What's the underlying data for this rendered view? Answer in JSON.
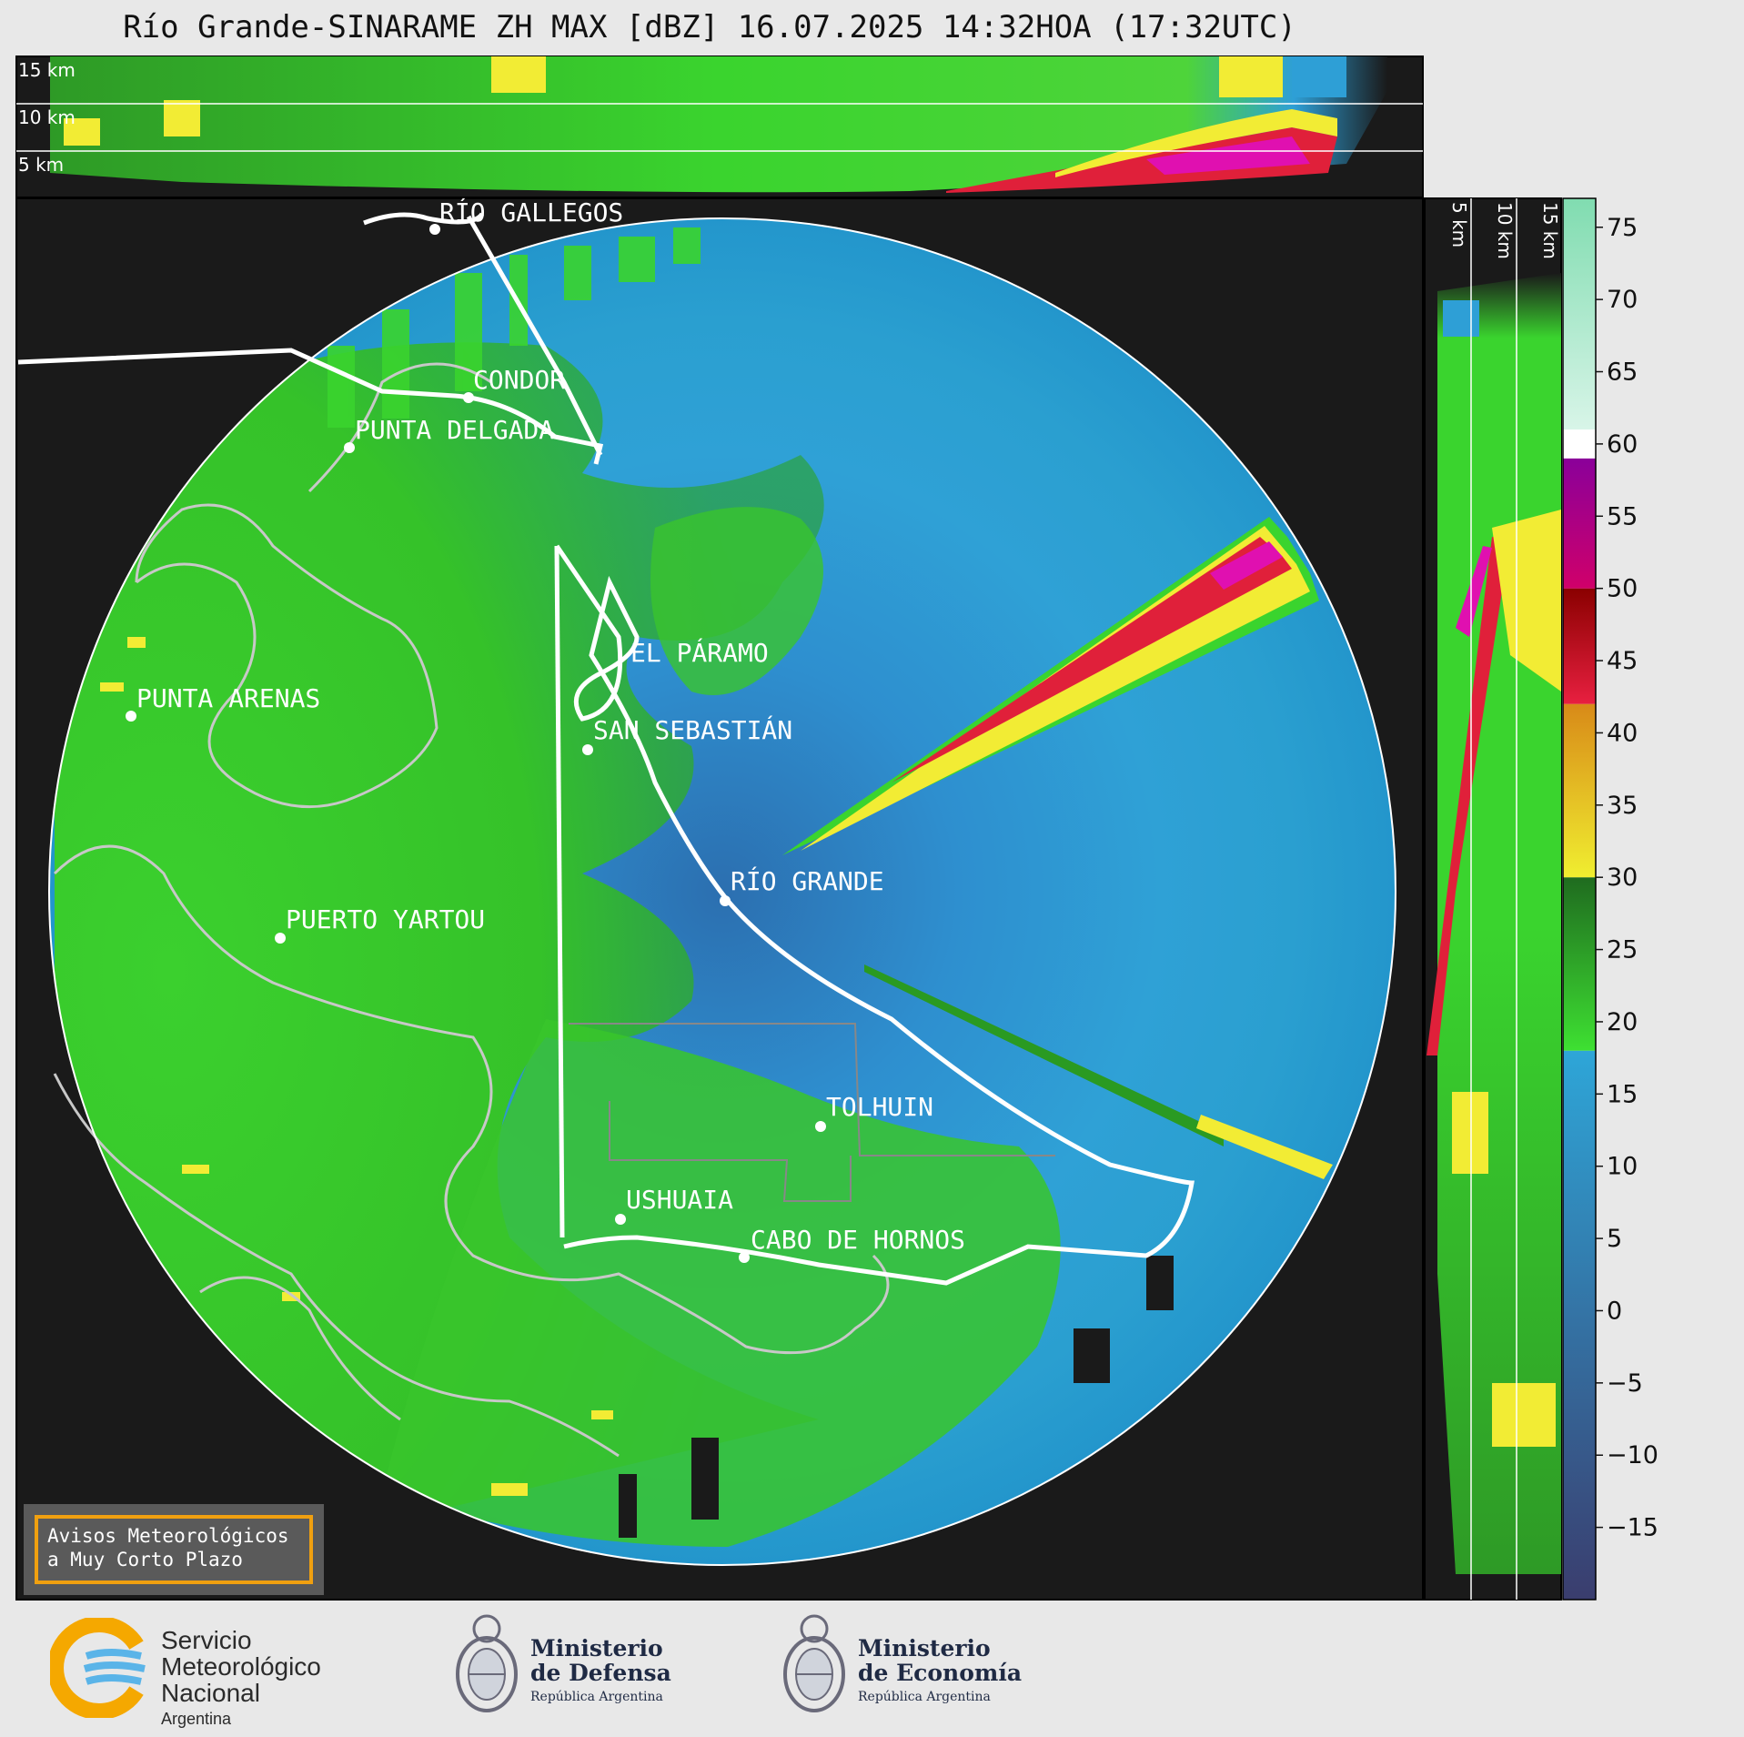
{
  "title": "Río Grande-SINARAME ZH MAX [dBZ] 16.07.2025 14:32HOA (17:32UTC)",
  "places": [
    {
      "id": "rio-gallegos",
      "label": "RÍO GALLEGOS"
    },
    {
      "id": "condor",
      "label": "CONDOR"
    },
    {
      "id": "punta-delgada",
      "label": "PUNTA DELGADA"
    },
    {
      "id": "el-paramo",
      "label": "EL PÁRAMO"
    },
    {
      "id": "punta-arenas",
      "label": "PUNTA ARENAS"
    },
    {
      "id": "san-sebastian",
      "label": "SAN SEBASTIÁN"
    },
    {
      "id": "rio-grande",
      "label": "RÍO GRANDE"
    },
    {
      "id": "puerto-yartou",
      "label": "PUERTO YARTOU"
    },
    {
      "id": "tolhuin",
      "label": "TOLHUIN"
    },
    {
      "id": "ushuaia",
      "label": "USHUAIA"
    },
    {
      "id": "cabo-de-hornos",
      "label": "CABO DE HORNOS"
    }
  ],
  "top_panel": {
    "altitude_labels": [
      "15 km",
      "10 km",
      "5 km"
    ]
  },
  "side_panel": {
    "altitude_labels": [
      "5 km",
      "10 km",
      "15 km"
    ]
  },
  "colorbar": {
    "unit": "dBZ",
    "ticks": [
      "75",
      "70",
      "65",
      "60",
      "55",
      "50",
      "45",
      "40",
      "35",
      "30",
      "25",
      "20",
      "15",
      "10",
      "5",
      "0",
      "−5",
      "−10",
      "−15"
    ],
    "min": -20,
    "max": 77,
    "bands": [
      {
        "from": -20,
        "to": 18,
        "color_low": "#3a3d6e",
        "color_high": "#2ea6d8"
      },
      {
        "from": 18,
        "to": 30,
        "color_low": "#3ee032",
        "color_high": "#1f6b1f"
      },
      {
        "from": 30,
        "to": 42,
        "color_low": "#f0ee30",
        "color_high": "#d88a18"
      },
      {
        "from": 42,
        "to": 50,
        "color_low": "#e82040",
        "color_high": "#8a0000"
      },
      {
        "from": 50,
        "to": 59,
        "color_low": "#d0006a",
        "color_high": "#8a009a"
      },
      {
        "from": 59,
        "to": 61,
        "color_low": "#ffffff",
        "color_high": "#ffffff"
      },
      {
        "from": 61,
        "to": 77,
        "color_low": "#d8f5e8",
        "color_high": "#80dcb0"
      }
    ]
  },
  "warning_box": {
    "line1": "Avisos Meteorológicos",
    "line2": "a Muy Corto Plazo"
  },
  "logos": {
    "smn": {
      "line1": "Servicio",
      "line2": "Meteorológico",
      "line3": "Nacional",
      "line4": "Argentina"
    },
    "defensa": {
      "line1": "Ministerio",
      "line2": "de Defensa",
      "line3": "República Argentina"
    },
    "economia": {
      "line1": "Ministerio",
      "line2": "de Economía",
      "line3": "República Argentina"
    }
  },
  "colors": {
    "background": "#1a1a1a",
    "blue": "#2e9fd6",
    "green": "#3ad42e",
    "dark_green": "#2a8a24",
    "yellow": "#f2ec34",
    "red": "#e0203a",
    "magenta": "#e010b0"
  }
}
